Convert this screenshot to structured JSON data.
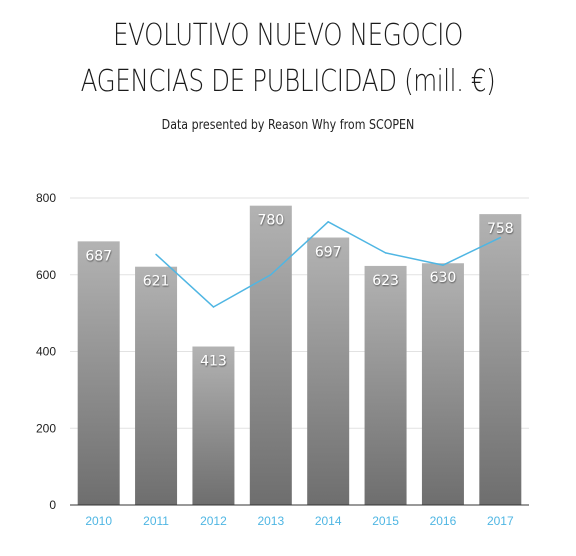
{
  "title_line1": "EVOLUTIVO NUEVO NEGOCIO",
  "title_line2": "AGENCIAS DE PUBLICIDAD (mill. €)",
  "subtitle": "Data presented by Reason Why from SCOPEN",
  "chart_data": {
    "type": "bar",
    "categories": [
      "2010",
      "2011",
      "2012",
      "2013",
      "2014",
      "2015",
      "2016",
      "2017"
    ],
    "series": [
      {
        "values": [
          687,
          621,
          413,
          780,
          697,
          623,
          630,
          758
        ],
        "color": "#9a9a9a"
      },
      {
        "values": [
          null,
          653,
          516,
          600,
          738,
          657,
          625,
          697
        ],
        "color": "#4fb6e3",
        "type": "line"
      }
    ],
    "data_labels": [
      "687",
      "621",
      "413",
      "780",
      "697",
      "623",
      "630",
      "758"
    ],
    "yticks": [
      0,
      200,
      400,
      600,
      800
    ],
    "ylim": [
      0,
      800
    ],
    "grid": true,
    "xlabel": "",
    "ylabel": "",
    "colors": {
      "bar_top": "#b3b3b3",
      "bar_bottom": "#6e6e6e",
      "line": "#4fb6e3",
      "axis_tick": "#4fb6e3"
    }
  }
}
